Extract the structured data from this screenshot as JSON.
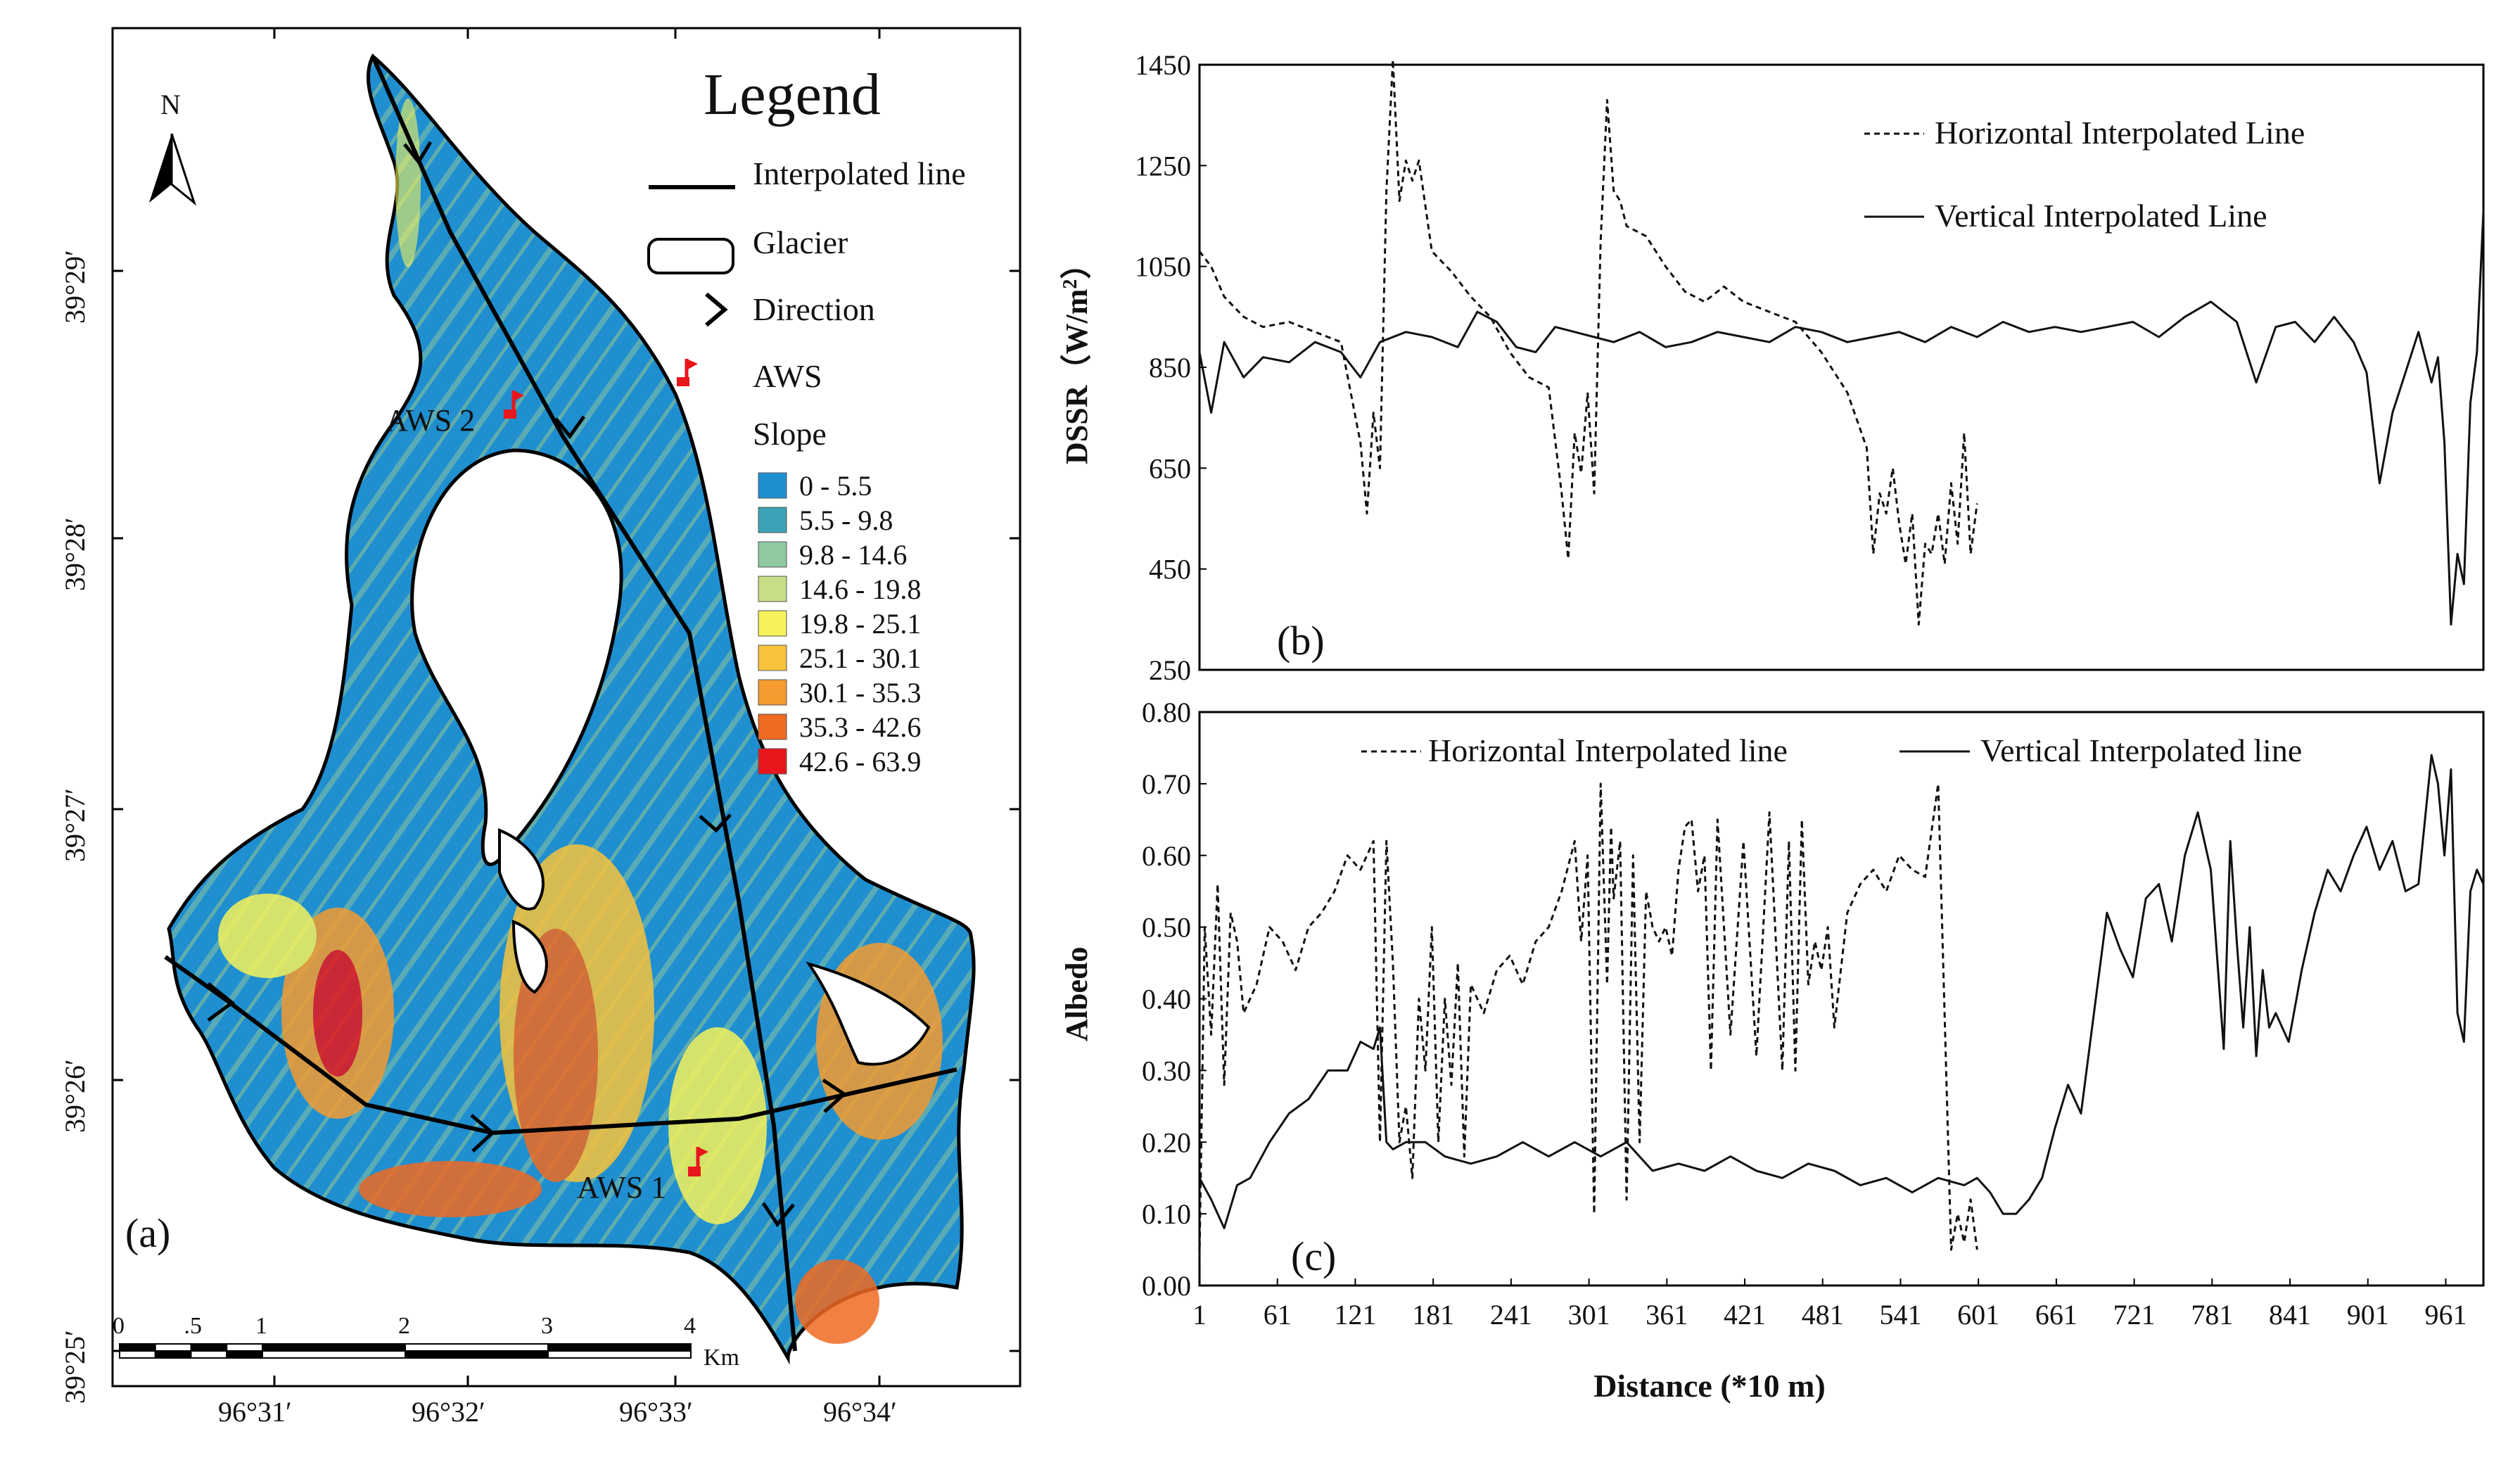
{
  "map": {
    "panel_label": "(a)",
    "north": "N",
    "legend": {
      "title": "Legend",
      "interpolated_line": "Interpolated line",
      "glacier": "Glacier",
      "direction": "Direction",
      "aws": "AWS",
      "slope_title": "Slope",
      "slope_classes": [
        {
          "label": "0 - 5.5",
          "color": "#1f8fd0"
        },
        {
          "label": "5.5 - 9.8",
          "color": "#3ba3b5"
        },
        {
          "label": "9.8 - 14.6",
          "color": "#8ec9a0"
        },
        {
          "label": "14.6 - 19.8",
          "color": "#c6df86"
        },
        {
          "label": "19.8 - 25.1",
          "color": "#f7f25a"
        },
        {
          "label": "25.1 - 30.1",
          "color": "#f8c23b"
        },
        {
          "label": "30.1 - 35.3",
          "color": "#f59b30"
        },
        {
          "label": "35.3 - 42.6",
          "color": "#f06a22"
        },
        {
          "label": "42.6 - 63.9",
          "color": "#e9161c"
        }
      ]
    },
    "aws_labels": [
      "AWS 2",
      "AWS 1"
    ],
    "lat_labels": [
      "39°29′",
      "39°28′",
      "39°27′",
      "39°26′",
      "39°25′"
    ],
    "lon_labels": [
      "96°31′",
      "96°32′",
      "96°33′",
      "96°34′"
    ],
    "scale": {
      "ticks": [
        "0",
        ".5",
        "1",
        "2",
        "3",
        "4"
      ],
      "unit": "Km"
    }
  },
  "chart_data": [
    {
      "type": "line",
      "panel_label": "(b)",
      "xlabel": "",
      "ylabel": "DSSR（W/m²）",
      "ylabel_main": "DSSR（W/m",
      "ylabel_sup": "2",
      "ylabel_end": "）",
      "ylim": [
        250,
        1450
      ],
      "yticks": [
        "250",
        "450",
        "650",
        "850",
        "1050",
        "1250",
        "1450"
      ],
      "xlim": [
        1,
        990
      ],
      "legend": [
        "Horizontal Interpolated Line",
        "Vertical Interpolated Line"
      ],
      "series": [
        {
          "name": "Horizontal Interpolated Line",
          "style": "dashed",
          "x": [
            1,
            10,
            20,
            35,
            50,
            70,
            90,
            110,
            125,
            130,
            135,
            140,
            145,
            150,
            155,
            160,
            165,
            170,
            180,
            195,
            210,
            225,
            240,
            255,
            270,
            280,
            285,
            290,
            295,
            300,
            305,
            310,
            315,
            320,
            325,
            330,
            345,
            360,
            375,
            390,
            405,
            420,
            440,
            460,
            480,
            500,
            515,
            520,
            525,
            530,
            535,
            540,
            545,
            550,
            555,
            560,
            565,
            570,
            575,
            580,
            585,
            590,
            595,
            600
          ],
          "y": [
            1080,
            1050,
            990,
            950,
            930,
            940,
            920,
            900,
            700,
            560,
            760,
            650,
            1200,
            1460,
            1180,
            1260,
            1220,
            1260,
            1080,
            1040,
            990,
            950,
            880,
            830,
            810,
            600,
            470,
            720,
            640,
            800,
            600,
            1100,
            1380,
            1200,
            1180,
            1130,
            1110,
            1050,
            1000,
            980,
            1010,
            980,
            960,
            940,
            880,
            800,
            690,
            480,
            600,
            560,
            650,
            540,
            460,
            560,
            340,
            500,
            480,
            560,
            460,
            620,
            500,
            720,
            480,
            580
          ]
        },
        {
          "name": "Vertical Interpolated Line",
          "style": "solid",
          "x": [
            1,
            10,
            20,
            35,
            50,
            70,
            90,
            110,
            125,
            140,
            160,
            180,
            200,
            215,
            230,
            245,
            260,
            275,
            290,
            305,
            320,
            340,
            360,
            380,
            400,
            420,
            440,
            460,
            480,
            500,
            520,
            540,
            560,
            580,
            600,
            620,
            640,
            660,
            680,
            700,
            720,
            740,
            760,
            780,
            800,
            815,
            830,
            845,
            860,
            875,
            890,
            900,
            910,
            920,
            930,
            940,
            950,
            955,
            960,
            965,
            970,
            975,
            980,
            985,
            990
          ],
          "y": [
            880,
            760,
            900,
            830,
            870,
            860,
            900,
            880,
            830,
            900,
            920,
            910,
            890,
            960,
            940,
            890,
            880,
            930,
            920,
            910,
            900,
            920,
            890,
            900,
            920,
            910,
            900,
            930,
            920,
            900,
            910,
            920,
            900,
            930,
            910,
            940,
            920,
            930,
            920,
            930,
            940,
            910,
            950,
            980,
            940,
            820,
            930,
            940,
            900,
            950,
            900,
            840,
            620,
            760,
            840,
            920,
            820,
            870,
            700,
            340,
            480,
            420,
            780,
            880,
            1160
          ]
        }
      ]
    },
    {
      "type": "line",
      "panel_label": "(c)",
      "xlabel": "Distance (*10 m)",
      "ylabel": "Albedo",
      "ylim": [
        0.0,
        0.8
      ],
      "yticks": [
        "0.00",
        "0.10",
        "0.20",
        "0.30",
        "0.40",
        "0.50",
        "0.60",
        "0.70",
        "0.80"
      ],
      "xlim": [
        1,
        990
      ],
      "xticks": [
        "1",
        "61",
        "121",
        "181",
        "241",
        "301",
        "361",
        "421",
        "481",
        "541",
        "601",
        "661",
        "721",
        "781",
        "841",
        "901",
        "961"
      ],
      "legend": [
        "Horizontal Interpolated line",
        "Vertical Interpolated line"
      ],
      "series": [
        {
          "name": "Horizontal Interpolated line",
          "style": "dashed",
          "x": [
            1,
            5,
            10,
            15,
            20,
            25,
            30,
            35,
            45,
            55,
            65,
            75,
            85,
            95,
            105,
            115,
            125,
            135,
            140,
            145,
            150,
            155,
            160,
            165,
            170,
            175,
            180,
            185,
            190,
            195,
            200,
            205,
            210,
            220,
            230,
            240,
            250,
            260,
            270,
            280,
            290,
            295,
            300,
            305,
            310,
            315,
            318,
            320,
            325,
            330,
            335,
            340,
            345,
            350,
            355,
            360,
            365,
            370,
            375,
            380,
            385,
            390,
            395,
            400,
            410,
            420,
            430,
            440,
            450,
            455,
            460,
            465,
            470,
            475,
            480,
            485,
            490,
            500,
            510,
            520,
            530,
            540,
            550,
            560,
            570,
            580,
            585,
            590,
            595,
            600
          ],
          "y": [
            0.04,
            0.5,
            0.35,
            0.56,
            0.28,
            0.52,
            0.48,
            0.38,
            0.42,
            0.5,
            0.48,
            0.44,
            0.5,
            0.52,
            0.55,
            0.6,
            0.58,
            0.62,
            0.2,
            0.62,
            0.45,
            0.2,
            0.25,
            0.15,
            0.4,
            0.3,
            0.5,
            0.2,
            0.4,
            0.28,
            0.45,
            0.18,
            0.42,
            0.38,
            0.44,
            0.46,
            0.42,
            0.48,
            0.5,
            0.55,
            0.62,
            0.48,
            0.6,
            0.1,
            0.7,
            0.42,
            0.64,
            0.54,
            0.62,
            0.12,
            0.6,
            0.2,
            0.55,
            0.5,
            0.48,
            0.5,
            0.46,
            0.58,
            0.64,
            0.65,
            0.55,
            0.6,
            0.3,
            0.65,
            0.35,
            0.62,
            0.32,
            0.66,
            0.3,
            0.62,
            0.3,
            0.65,
            0.42,
            0.48,
            0.44,
            0.5,
            0.36,
            0.52,
            0.56,
            0.58,
            0.55,
            0.6,
            0.58,
            0.57,
            0.7,
            0.05,
            0.1,
            0.06,
            0.12,
            0.05
          ]
        },
        {
          "name": "Vertical Interpolated line",
          "style": "solid",
          "x": [
            1,
            10,
            20,
            30,
            40,
            55,
            70,
            85,
            100,
            115,
            125,
            135,
            140,
            145,
            150,
            160,
            175,
            190,
            210,
            230,
            250,
            270,
            290,
            310,
            330,
            350,
            370,
            390,
            410,
            430,
            450,
            470,
            490,
            510,
            530,
            550,
            570,
            590,
            600,
            610,
            620,
            630,
            640,
            650,
            660,
            670,
            680,
            690,
            700,
            710,
            720,
            730,
            740,
            750,
            760,
            770,
            780,
            790,
            795,
            800,
            805,
            810,
            815,
            820,
            825,
            830,
            840,
            850,
            860,
            870,
            880,
            890,
            900,
            910,
            920,
            930,
            940,
            950,
            955,
            960,
            965,
            970,
            975,
            980,
            985,
            990
          ],
          "y": [
            0.15,
            0.12,
            0.08,
            0.14,
            0.15,
            0.2,
            0.24,
            0.26,
            0.3,
            0.3,
            0.34,
            0.33,
            0.36,
            0.2,
            0.19,
            0.2,
            0.2,
            0.18,
            0.17,
            0.18,
            0.2,
            0.18,
            0.2,
            0.18,
            0.2,
            0.16,
            0.17,
            0.16,
            0.18,
            0.16,
            0.15,
            0.17,
            0.16,
            0.14,
            0.15,
            0.13,
            0.15,
            0.14,
            0.15,
            0.13,
            0.1,
            0.1,
            0.12,
            0.15,
            0.22,
            0.28,
            0.24,
            0.38,
            0.52,
            0.47,
            0.43,
            0.54,
            0.56,
            0.48,
            0.6,
            0.66,
            0.58,
            0.33,
            0.62,
            0.48,
            0.36,
            0.5,
            0.32,
            0.44,
            0.36,
            0.38,
            0.34,
            0.44,
            0.52,
            0.58,
            0.55,
            0.6,
            0.64,
            0.58,
            0.62,
            0.55,
            0.56,
            0.74,
            0.7,
            0.6,
            0.72,
            0.38,
            0.34,
            0.55,
            0.58,
            0.56
          ]
        }
      ]
    }
  ]
}
